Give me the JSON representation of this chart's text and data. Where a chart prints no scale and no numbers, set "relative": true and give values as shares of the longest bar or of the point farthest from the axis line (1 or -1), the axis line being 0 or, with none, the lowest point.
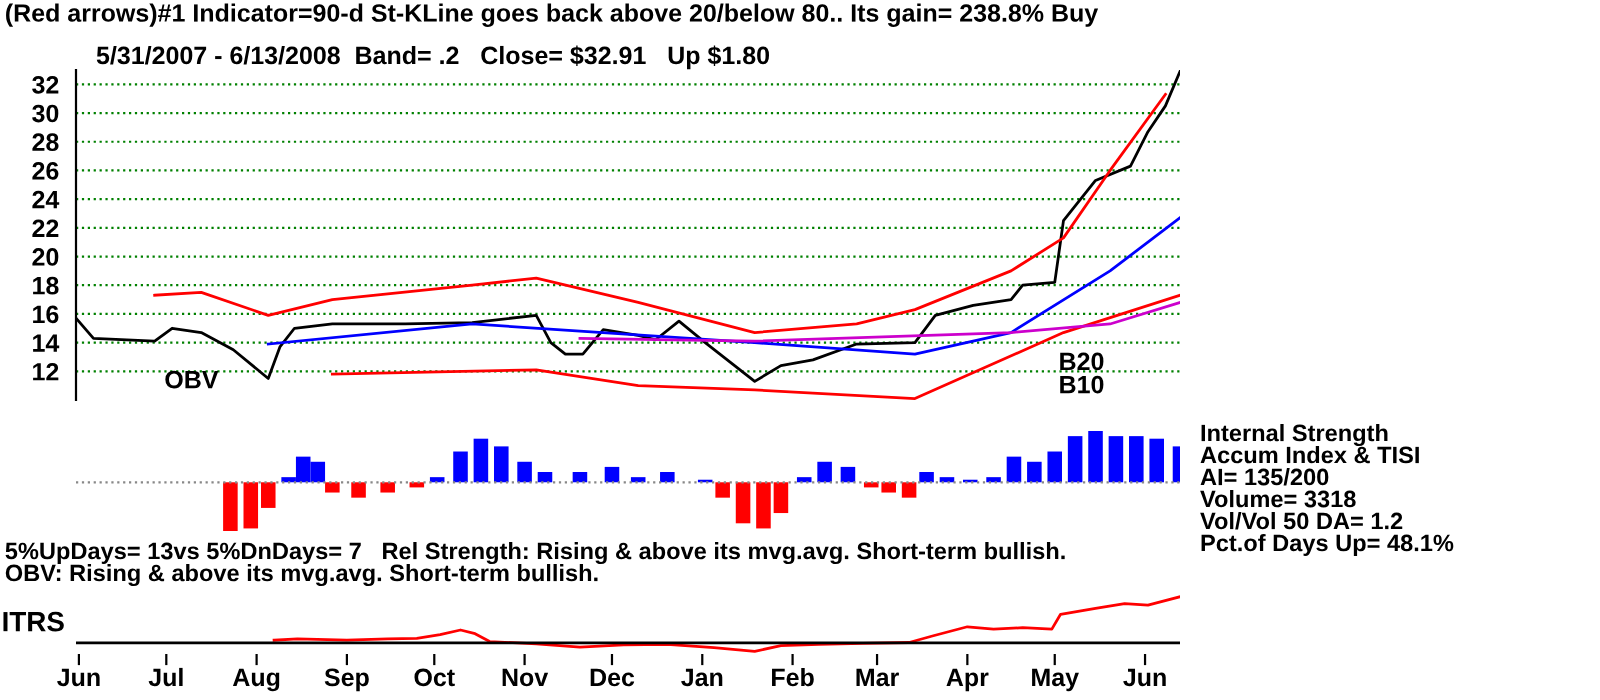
{
  "chart_data": [
    {
      "type": "line",
      "title": "(Red arrows)#1 Indicator=90-d St-KLine goes back above 20/below 80.. Its gain= 238.8% Buy",
      "subtitle": "5/31/2007 - 6/13/2008  Band= .2   Close= $32.91   Up $1.80",
      "xlim": [
        "2007-05-31",
        "2008-06-13"
      ],
      "ylim": [
        10,
        33
      ],
      "yticks": [
        12,
        14,
        16,
        18,
        20,
        22,
        24,
        26,
        28,
        30,
        32
      ],
      "grid": "y",
      "tick_labels": "y",
      "annotations": [
        "OBV",
        "B20",
        "B10"
      ],
      "series": [
        {
          "color": "#000000",
          "x": [
            "2007-05-31",
            "2007-06-06",
            "2007-06-27",
            "2007-07-03",
            "2007-07-13",
            "2007-07-24",
            "2007-08-05",
            "2007-08-09",
            "2007-08-14",
            "2007-08-27",
            "2007-09-21",
            "2007-10-14",
            "2007-11-05",
            "2007-11-10",
            "2007-11-15",
            "2007-11-21",
            "2007-11-28",
            "2007-12-10",
            "2007-12-16",
            "2007-12-24",
            "2008-01-02",
            "2008-01-19",
            "2008-01-28",
            "2008-02-08",
            "2008-02-23",
            "2008-03-14",
            "2008-03-21",
            "2008-04-03",
            "2008-04-16",
            "2008-04-20",
            "2008-05-01",
            "2008-05-04",
            "2008-05-15",
            "2008-05-27",
            "2008-06-02",
            "2008-06-08",
            "2008-06-13"
          ],
          "values": [
            15.7,
            14.3,
            14.1,
            15.0,
            14.7,
            13.5,
            11.5,
            13.7,
            15.0,
            15.3,
            15.3,
            15.4,
            15.9,
            14.0,
            13.2,
            13.2,
            14.9,
            14.5,
            14.2,
            15.5,
            14.0,
            11.3,
            12.4,
            12.8,
            13.9,
            14.0,
            15.9,
            16.6,
            17.0,
            18.0,
            18.2,
            22.5,
            25.3,
            26.3,
            28.7,
            30.5,
            32.9
          ]
        },
        {
          "color": "#ff0000",
          "x": [
            "2007-06-27",
            "2007-07-13",
            "2007-08-05",
            "2007-08-27",
            "2007-10-14",
            "2007-11-05",
            "2007-12-10",
            "2008-01-19",
            "2008-02-23",
            "2008-03-14",
            "2008-04-16",
            "2008-05-04",
            "2008-05-20",
            "2008-06-08"
          ],
          "values": [
            17.3,
            17.5,
            15.9,
            17.0,
            18.0,
            18.5,
            16.8,
            14.7,
            15.3,
            16.3,
            19.0,
            21.3,
            26.0,
            31.3
          ]
        },
        {
          "color": "#ff0000",
          "x": [
            "2007-08-27",
            "2007-11-05",
            "2007-12-10",
            "2008-01-19",
            "2008-03-14",
            "2008-05-04",
            "2008-06-13"
          ],
          "values": [
            11.8,
            12.1,
            11.0,
            10.7,
            10.1,
            14.7,
            17.3
          ]
        },
        {
          "color": "#0000ff",
          "x": [
            "2007-08-05",
            "2007-10-14",
            "2007-11-20",
            "2008-01-19",
            "2008-03-14",
            "2008-04-16",
            "2008-05-20",
            "2008-06-13"
          ],
          "values": [
            13.9,
            15.3,
            14.8,
            14.0,
            13.2,
            14.7,
            19.0,
            22.7
          ]
        },
        {
          "color": "#cc00cc",
          "x": [
            "2007-11-20",
            "2008-01-19",
            "2008-04-16",
            "2008-05-20",
            "2008-06-13"
          ],
          "values": [
            14.3,
            14.1,
            14.7,
            15.3,
            16.8
          ]
        }
      ]
    },
    {
      "type": "bar",
      "relative": true,
      "tick_labels": false,
      "ref_lines": [
        {
          "axis": "y",
          "value": 0,
          "color": "#888888",
          "line_style": "dotted"
        }
      ],
      "xlim": [
        "2007-05-31",
        "2008-06-13"
      ],
      "annotations": [
        "Internal Strength",
        "Accum Index & TISI",
        "AI= 135/200",
        "Volume= 3318",
        "Vol/Vol 50 DA= 1.2",
        "Pct.of Days Up= 48.1%",
        "5%UpDays= 13vs 5%DnDays= 7   Rel Strength: Rising & above its mvg.avg. Short-term bullish.",
        "OBV: Rising & above its mvg.avg. Short-term bullish."
      ],
      "x": [
        "2007-07-23",
        "2007-07-30",
        "2007-08-05",
        "2007-08-12",
        "2007-08-17",
        "2007-08-22",
        "2007-08-27",
        "2007-09-05",
        "2007-09-15",
        "2007-09-25",
        "2007-10-02",
        "2007-10-10",
        "2007-10-17",
        "2007-10-24",
        "2007-11-01",
        "2007-11-08",
        "2007-11-20",
        "2007-12-01",
        "2007-12-10",
        "2007-12-20",
        "2008-01-02",
        "2008-01-08",
        "2008-01-15",
        "2008-01-22",
        "2008-01-28",
        "2008-02-05",
        "2008-02-12",
        "2008-02-20",
        "2008-02-28",
        "2008-03-05",
        "2008-03-12",
        "2008-03-18",
        "2008-03-25",
        "2008-04-02",
        "2008-04-10",
        "2008-04-17",
        "2008-04-24",
        "2008-05-01",
        "2008-05-08",
        "2008-05-15",
        "2008-05-22",
        "2008-05-29",
        "2008-06-05",
        "2008-06-13"
      ],
      "values": [
        -0.95,
        -0.9,
        -0.5,
        0.1,
        0.5,
        0.4,
        -0.2,
        -0.3,
        -0.2,
        -0.1,
        0.1,
        0.6,
        0.85,
        0.7,
        0.4,
        0.2,
        0.2,
        0.3,
        0.1,
        0.2,
        0.05,
        -0.3,
        -0.8,
        -0.9,
        -0.6,
        0.1,
        0.4,
        0.3,
        -0.1,
        -0.2,
        -0.3,
        0.2,
        0.1,
        0.05,
        0.1,
        0.5,
        0.4,
        0.6,
        0.9,
        1.0,
        0.9,
        0.9,
        0.85,
        0.7
      ],
      "colors": [
        "#ff0000",
        "#ff0000",
        "#ff0000",
        "#0000ff",
        "#0000ff",
        "#0000ff",
        "#ff0000",
        "#ff0000",
        "#ff0000",
        "#ff0000",
        "#0000ff",
        "#0000ff",
        "#0000ff",
        "#0000ff",
        "#0000ff",
        "#0000ff",
        "#0000ff",
        "#0000ff",
        "#0000ff",
        "#0000ff",
        "#0000ff",
        "#ff0000",
        "#ff0000",
        "#ff0000",
        "#ff0000",
        "#0000ff",
        "#0000ff",
        "#0000ff",
        "#ff0000",
        "#ff0000",
        "#ff0000",
        "#0000ff",
        "#0000ff",
        "#0000ff",
        "#0000ff",
        "#0000ff",
        "#0000ff",
        "#0000ff",
        "#0000ff",
        "#0000ff",
        "#0000ff",
        "#0000ff",
        "#0000ff",
        "#0000ff"
      ]
    },
    {
      "type": "line",
      "relative": true,
      "ylabel": "ITRS",
      "tick_labels": "x",
      "xlim": [
        "2007-05-31",
        "2008-06-13"
      ],
      "xticks": [
        {
          "value": "2007-06-01",
          "label": "Jun"
        },
        {
          "value": "2007-07-01",
          "label": "Jul"
        },
        {
          "value": "2007-08-01",
          "label": "Aug"
        },
        {
          "value": "2007-09-01",
          "label": "Sep"
        },
        {
          "value": "2007-10-01",
          "label": "Oct"
        },
        {
          "value": "2007-11-01",
          "label": "Nov"
        },
        {
          "value": "2007-12-01",
          "label": "Dec"
        },
        {
          "value": "2008-01-01",
          "label": "Jan"
        },
        {
          "value": "2008-02-01",
          "label": "Feb"
        },
        {
          "value": "2008-03-01",
          "label": "Mar"
        },
        {
          "value": "2008-04-01",
          "label": "Apr"
        },
        {
          "value": "2008-05-01",
          "label": "May"
        },
        {
          "value": "2008-06-01",
          "label": "Jun"
        }
      ],
      "series": [
        {
          "color": "#ff0000",
          "x": [
            "2007-08-07",
            "2007-08-15",
            "2007-09-01",
            "2007-09-15",
            "2007-09-25",
            "2007-10-03",
            "2007-10-10",
            "2007-10-15",
            "2007-10-20",
            "2007-11-05",
            "2007-11-20",
            "2007-12-05",
            "2007-12-20",
            "2008-01-05",
            "2008-01-19",
            "2008-01-28",
            "2008-02-10",
            "2008-02-25",
            "2008-03-12",
            "2008-03-20",
            "2008-04-01",
            "2008-04-10",
            "2008-04-20",
            "2008-04-30",
            "2008-05-03",
            "2008-05-15",
            "2008-05-25",
            "2008-06-02",
            "2008-06-13"
          ],
          "values": [
            0.06,
            0.09,
            0.06,
            0.09,
            0.1,
            0.18,
            0.28,
            0.2,
            0.03,
            -0.02,
            -0.09,
            -0.04,
            -0.03,
            -0.1,
            -0.18,
            -0.06,
            -0.03,
            -0.01,
            0.01,
            0.15,
            0.35,
            0.3,
            0.33,
            0.3,
            0.62,
            0.75,
            0.85,
            0.82,
            1.0
          ]
        }
      ]
    }
  ]
}
